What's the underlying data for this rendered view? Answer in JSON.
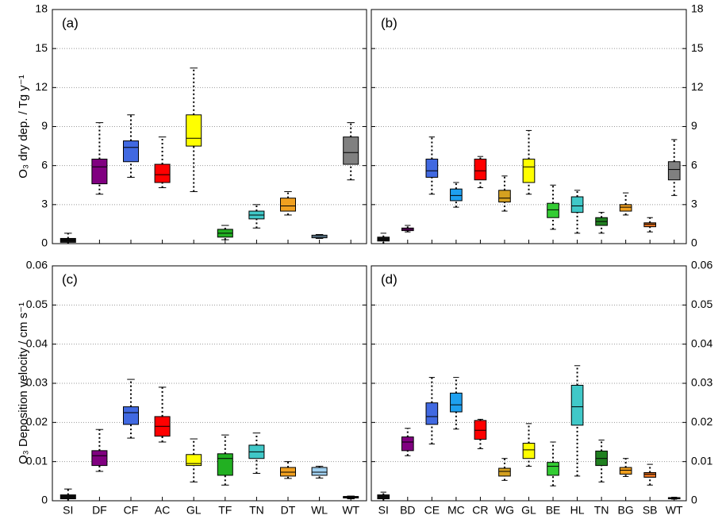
{
  "chart_data": [
    {
      "type": "box",
      "label": "(a)",
      "ylabel": "O₃ dry dep. / Tg y⁻¹",
      "yaxis_side": "left",
      "grid": true,
      "categories": [
        null,
        null,
        null,
        null,
        null,
        null,
        null,
        null,
        null,
        null
      ],
      "colors": [
        "#111111",
        "#800080",
        "#4169e1",
        "#ff0000",
        "#ffff00",
        "#22b022",
        "#40c8c8",
        "#f0a020",
        "#a0d0f0",
        "#808080"
      ],
      "whisker_low": [
        0,
        3.8,
        5.1,
        4.3,
        4.0,
        0.3,
        1.2,
        2.2,
        0.4,
        4.9
      ],
      "q1": [
        0.1,
        4.6,
        6.3,
        4.7,
        7.5,
        0.5,
        1.9,
        2.5,
        0.45,
        6.1
      ],
      "median": [
        0.25,
        5.9,
        7.4,
        5.3,
        8.1,
        0.8,
        2.2,
        2.9,
        0.55,
        7.0
      ],
      "q3": [
        0.4,
        6.5,
        7.9,
        6.1,
        9.9,
        1.1,
        2.5,
        3.5,
        0.65,
        8.2
      ],
      "whisker_high": [
        0.8,
        9.3,
        9.9,
        8.2,
        13.5,
        1.4,
        3.0,
        4.0,
        0.7,
        9.3
      ],
      "ylim": [
        0,
        18
      ],
      "yticks": [
        0,
        3,
        6,
        9,
        12,
        15,
        18
      ]
    },
    {
      "type": "box",
      "label": "(b)",
      "yaxis_side": "right",
      "grid": true,
      "categories": [
        null,
        null,
        null,
        null,
        null,
        null,
        null,
        null,
        null,
        null,
        null,
        null,
        null
      ],
      "colors": [
        "#111111",
        "#800080",
        "#4169e1",
        "#1ea0f0",
        "#ff0000",
        "#d4a020",
        "#ffff00",
        "#33cc33",
        "#40c8c8",
        "#208020",
        "#f0a020",
        "#e07020",
        "#808080"
      ],
      "whisker_low": [
        0,
        0.9,
        3.8,
        2.8,
        4.3,
        2.5,
        3.8,
        1.1,
        0.8,
        0.8,
        2.2,
        0.9,
        3.7
      ],
      "q1": [
        0.2,
        1.0,
        5.1,
        3.3,
        4.9,
        3.2,
        4.7,
        2.0,
        2.4,
        1.4,
        2.5,
        1.3,
        4.9
      ],
      "median": [
        0.35,
        1.1,
        5.6,
        3.7,
        5.6,
        3.5,
        5.9,
        2.6,
        2.9,
        1.7,
        2.8,
        1.5,
        5.7
      ],
      "q3": [
        0.5,
        1.2,
        6.5,
        4.2,
        6.5,
        4.1,
        6.5,
        3.1,
        3.6,
        2.0,
        3.0,
        1.6,
        6.3
      ],
      "whisker_high": [
        0.8,
        1.4,
        8.2,
        4.7,
        6.7,
        5.2,
        8.7,
        4.5,
        4.1,
        2.4,
        3.9,
        2.0,
        8.0
      ],
      "ylim": [
        0,
        18
      ],
      "yticks": [
        0,
        3,
        6,
        9,
        12,
        15,
        18
      ]
    },
    {
      "type": "box",
      "label": "(c)",
      "ylabel": "O₃ Deposition velocity / cm s⁻¹",
      "yaxis_side": "left",
      "grid": true,
      "categories": [
        "SI",
        "DF",
        "CF",
        "AC",
        "GL",
        "TF",
        "TN",
        "DT",
        "WL",
        "WT"
      ],
      "colors": [
        "#111111",
        "#800080",
        "#4169e1",
        "#ff0000",
        "#ffff00",
        "#22b022",
        "#40c8c8",
        "#f0a020",
        "#a0d0f0",
        "#808080"
      ],
      "whisker_low": [
        0,
        0.0075,
        0.016,
        0.015,
        0.0048,
        0.004,
        0.007,
        0.0057,
        0.0058,
        0.0005
      ],
      "q1": [
        0.0005,
        0.009,
        0.0195,
        0.0165,
        0.009,
        0.0065,
        0.0108,
        0.0063,
        0.0065,
        0.0007
      ],
      "median": [
        0.001,
        0.0115,
        0.0225,
        0.019,
        0.0095,
        0.0108,
        0.0125,
        0.0073,
        0.0073,
        0.0009
      ],
      "q3": [
        0.0015,
        0.0128,
        0.024,
        0.0215,
        0.0118,
        0.012,
        0.0142,
        0.0085,
        0.0085,
        0.0011
      ],
      "whisker_high": [
        0.003,
        0.0182,
        0.031,
        0.029,
        0.0158,
        0.0168,
        0.0173,
        0.01,
        0.0088,
        0.0012
      ],
      "ylim": [
        0,
        0.06
      ],
      "yticks": [
        0,
        0.01,
        0.02,
        0.03,
        0.04,
        0.05,
        0.06
      ]
    },
    {
      "type": "box",
      "label": "(d)",
      "yaxis_side": "right",
      "grid": true,
      "categories": [
        "SI",
        "BD",
        "CE",
        "MC",
        "CR",
        "WG",
        "GL",
        "BE",
        "HL",
        "TN",
        "BG",
        "SB",
        "WT"
      ],
      "colors": [
        "#111111",
        "#800080",
        "#4169e1",
        "#1ea0f0",
        "#ff0000",
        "#d4a020",
        "#ffff00",
        "#33cc33",
        "#40c8c8",
        "#208020",
        "#f0a020",
        "#e07020",
        "#808080"
      ],
      "whisker_low": [
        0,
        0.0115,
        0.0145,
        0.0183,
        0.0133,
        0.0052,
        0.0088,
        0.0038,
        0.0063,
        0.0048,
        0.0062,
        0.004,
        0.0004
      ],
      "q1": [
        0.0005,
        0.0128,
        0.0195,
        0.0227,
        0.0157,
        0.0063,
        0.0108,
        0.0065,
        0.0193,
        0.009,
        0.0068,
        0.006,
        0.0005
      ],
      "median": [
        0.001,
        0.015,
        0.0215,
        0.0245,
        0.018,
        0.0075,
        0.013,
        0.0088,
        0.024,
        0.0108,
        0.0078,
        0.0068,
        0.0007
      ],
      "q3": [
        0.0015,
        0.0163,
        0.025,
        0.0275,
        0.0205,
        0.0083,
        0.0147,
        0.0098,
        0.0295,
        0.0127,
        0.0085,
        0.0072,
        0.0008
      ],
      "whisker_high": [
        0.0022,
        0.0185,
        0.0315,
        0.0315,
        0.0208,
        0.0108,
        0.0197,
        0.015,
        0.0345,
        0.0155,
        0.0108,
        0.0093,
        0.0009
      ],
      "ylim": [
        0,
        0.06
      ],
      "yticks": [
        0,
        0.01,
        0.02,
        0.03,
        0.04,
        0.05,
        0.06
      ]
    }
  ]
}
